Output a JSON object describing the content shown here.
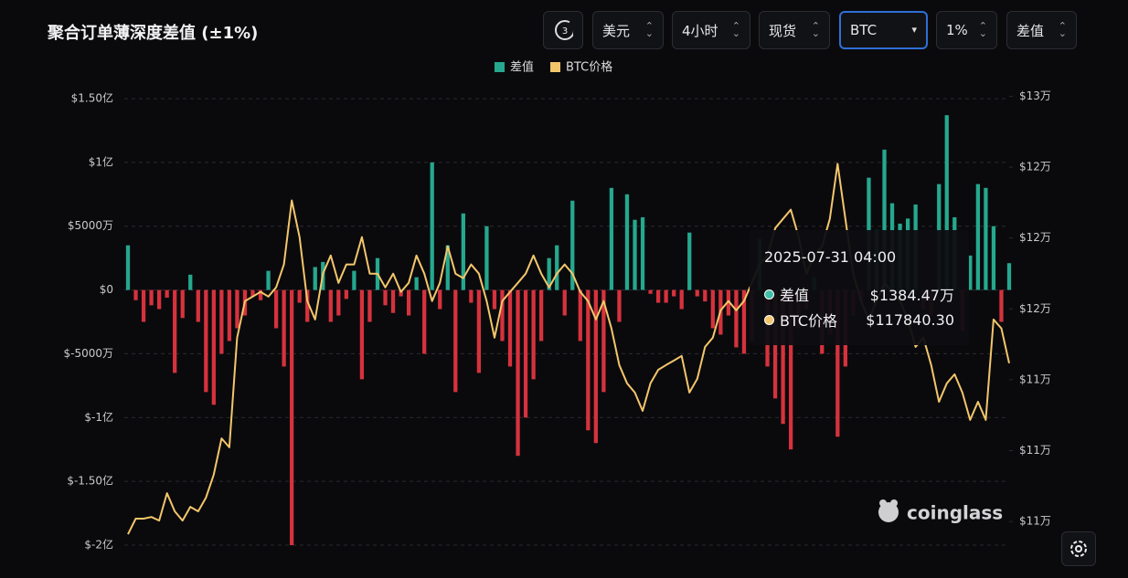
{
  "header": {
    "title": "聚合订单薄深度差值 (±1%)"
  },
  "controls": {
    "refresh": "3",
    "options": [
      "美元",
      "4小时",
      "现货",
      "BTC",
      "1%",
      "差值"
    ]
  },
  "watermark": "coinglass",
  "tooltip": {
    "title": "2025-07-31 04:00",
    "rows": [
      {
        "name": "差值",
        "value": "$1384.47万"
      },
      {
        "name": "BTC价格",
        "value": "$117840.30"
      }
    ]
  },
  "chart_data": {
    "type": "combo",
    "grid": true,
    "legend": "top",
    "negative_color": "#d6323d",
    "ylim": [
      -20000,
      15000
    ],
    "yticks": [
      {
        "value": 15000,
        "label": "$1.50亿"
      },
      {
        "value": 10000,
        "label": "$1亿"
      },
      {
        "value": 5000,
        "label": "$5000万"
      },
      {
        "value": 0,
        "label": "$0"
      },
      {
        "value": -5000,
        "label": "$-5000万"
      },
      {
        "value": -10000,
        "label": "$-1亿"
      },
      {
        "value": -15000,
        "label": "$-1.50亿"
      },
      {
        "value": -20000,
        "label": "$-2亿"
      }
    ],
    "y2lim": [
      107000,
      125900
    ],
    "y2ticks": [
      {
        "value": 126000,
        "label": "$13万"
      },
      {
        "value": 123000,
        "label": "$12万"
      },
      {
        "value": 120000,
        "label": "$12万"
      },
      {
        "value": 117000,
        "label": "$12万"
      },
      {
        "value": 114000,
        "label": "$11万"
      },
      {
        "value": 111000,
        "label": "$11万"
      },
      {
        "value": 108000,
        "label": "$11万"
      }
    ],
    "series": [
      {
        "name": "差值",
        "type": "bar",
        "color": "#25a88e",
        "values": [
          3500,
          -800,
          -2500,
          -1200,
          -1500,
          -600,
          -6500,
          -2200,
          1200,
          -2500,
          -8000,
          -9000,
          -5000,
          -4000,
          -3000,
          -2000,
          -500,
          -800,
          1500,
          -3000,
          -6000,
          -20000,
          -1000,
          -2500,
          1800,
          2200,
          -2500,
          -2000,
          -700,
          1500,
          -7000,
          -2500,
          2500,
          -1200,
          -1800,
          -500,
          -2000,
          1000,
          -5000,
          10000,
          -1500,
          3500,
          -8000,
          6000,
          -1000,
          -6500,
          5000,
          -1500,
          -4000,
          -6000,
          -13000,
          -10000,
          -7000,
          -4000,
          2500,
          3500,
          -2000,
          7000,
          -4000,
          -11000,
          -12000,
          -8000,
          8000,
          -2500,
          7500,
          5500,
          5700,
          -300,
          -1000,
          -1000,
          -500,
          -1500,
          4500,
          -500,
          -900,
          -3000,
          -3500,
          -2000,
          -4500,
          -5000,
          -4000,
          4000,
          -6000,
          -8500,
          -10500,
          -12500,
          -3000,
          -1500,
          1000,
          -5000,
          -3500,
          -11500,
          -6000,
          -2000,
          -800,
          8800,
          4700,
          11000,
          6800,
          5200,
          5600,
          6700,
          -1500,
          -2000,
          8300,
          13700,
          5700,
          -3200,
          2700,
          8300,
          8000,
          5000,
          -2500,
          2100
        ]
      },
      {
        "name": "BTC价格",
        "type": "line",
        "axis": "y2",
        "color": "#f3c66b",
        "values": [
          107460,
          108120,
          108120,
          108190,
          108040,
          109200,
          108430,
          108040,
          108620,
          108430,
          109010,
          109980,
          111520,
          111140,
          115780,
          117330,
          117520,
          117720,
          117520,
          117910,
          118880,
          121590,
          120040,
          117330,
          116550,
          118490,
          119260,
          118100,
          118880,
          118880,
          120040,
          118490,
          118490,
          117910,
          118490,
          117720,
          118100,
          119260,
          118490,
          117330,
          118100,
          119650,
          118490,
          118300,
          118880,
          118490,
          117330,
          115780,
          117330,
          117720,
          118100,
          118490,
          119260,
          118490,
          117910,
          118490,
          118880,
          118490,
          117720,
          117330,
          116550,
          117330,
          116170,
          114620,
          113850,
          113460,
          112680,
          113850,
          114420,
          114620,
          114810,
          115010,
          113460,
          114040,
          115390,
          115780,
          116940,
          117330,
          116940,
          117330,
          118100,
          118880,
          119260,
          120420,
          120810,
          121200,
          120040,
          118490,
          119260,
          119650,
          120810,
          123140,
          120810,
          118490,
          117330,
          116550,
          117330,
          118100,
          117720,
          117330,
          116550,
          115390,
          115780,
          114620,
          113070,
          113850,
          114230,
          113460,
          112300,
          113070,
          112300,
          116550,
          116170,
          114700
        ]
      }
    ]
  }
}
